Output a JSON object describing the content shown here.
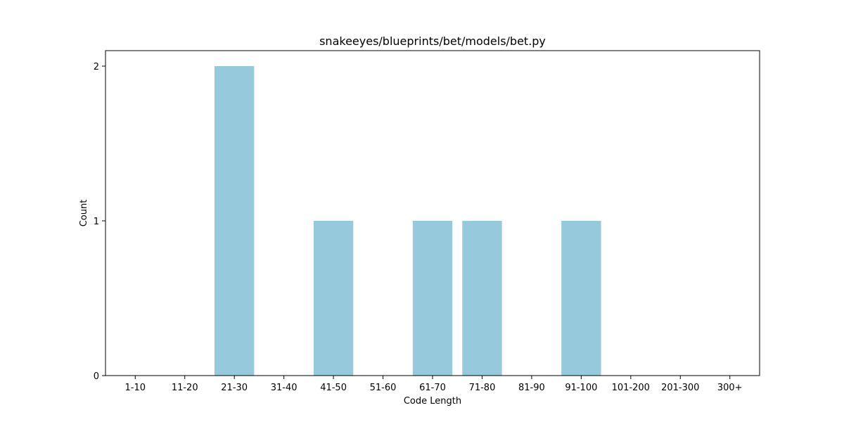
{
  "chart_data": {
    "type": "bar",
    "title": "snakeeyes/blueprints/bet/models/bet.py",
    "xlabel": "Code Length",
    "ylabel": "Count",
    "categories": [
      "1-10",
      "11-20",
      "21-30",
      "31-40",
      "41-50",
      "51-60",
      "61-70",
      "71-80",
      "81-90",
      "91-100",
      "101-200",
      "201-300",
      "300+"
    ],
    "values": [
      0,
      0,
      2,
      0,
      1,
      0,
      1,
      1,
      0,
      1,
      0,
      0,
      0
    ],
    "ylim": [
      0,
      2.1
    ],
    "yticks": [
      0,
      1,
      2
    ],
    "bar_color": "#96c9dc",
    "grid": false,
    "legend": "none"
  }
}
